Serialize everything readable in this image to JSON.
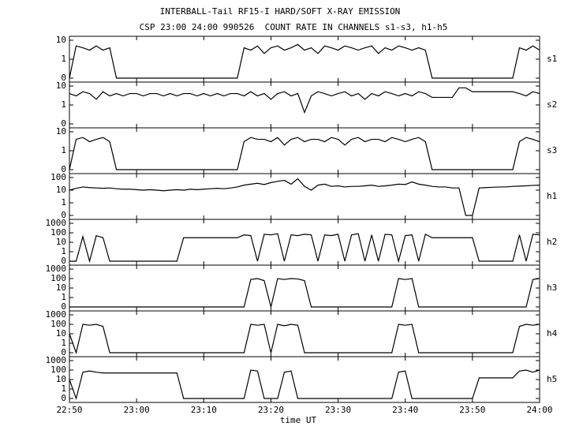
{
  "chart_data": {
    "type": "line",
    "title": "INTERBALL-Tail RF15-I HARD/SOFT X-RAY EMISSION",
    "subtitle": "CSP 23:00 24:00 990526  COUNT RATE IN CHANNELS s1-s3, h1-h5",
    "xlabel": "time UT",
    "log_scale": true,
    "color": "#000000",
    "xlim": [
      1370,
      1440
    ],
    "xticks": [
      {
        "value": 1370,
        "label": "22:50"
      },
      {
        "value": 1380,
        "label": "23:00"
      },
      {
        "value": 1390,
        "label": "23:10"
      },
      {
        "value": 1400,
        "label": "23:20"
      },
      {
        "value": 1410,
        "label": "23:30"
      },
      {
        "value": 1420,
        "label": "23:40"
      },
      {
        "value": 1430,
        "label": "23:50"
      },
      {
        "value": 1440,
        "label": "24:00"
      }
    ],
    "x": [
      1370,
      1371,
      1372,
      1373,
      1374,
      1375,
      1376,
      1377,
      1378,
      1379,
      1380,
      1381,
      1382,
      1383,
      1384,
      1385,
      1386,
      1387,
      1388,
      1389,
      1390,
      1391,
      1392,
      1393,
      1394,
      1395,
      1396,
      1397,
      1398,
      1399,
      1400,
      1401,
      1402,
      1403,
      1404,
      1405,
      1406,
      1407,
      1408,
      1409,
      1410,
      1411,
      1412,
      1413,
      1414,
      1415,
      1416,
      1417,
      1418,
      1419,
      1420,
      1421,
      1422,
      1423,
      1424,
      1425,
      1426,
      1427,
      1428,
      1429,
      1430,
      1431,
      1432,
      1433,
      1434,
      1435,
      1436,
      1437,
      1438,
      1439,
      1440
    ],
    "panels": [
      {
        "name": "s1",
        "ylim": [
          0,
          10
        ],
        "yticks": [
          0,
          1,
          10
        ],
        "values": [
          0,
          5,
          4,
          3,
          5,
          3,
          4,
          0,
          0,
          0,
          0,
          0,
          0,
          0,
          0,
          0,
          0,
          0,
          0,
          0,
          0,
          0,
          0,
          0,
          0,
          0,
          4,
          3,
          5,
          2,
          4,
          5,
          3,
          4,
          6,
          3,
          4,
          2,
          5,
          4,
          3,
          5,
          4,
          3,
          4,
          5,
          2,
          4,
          3,
          5,
          4,
          3,
          4,
          3,
          0,
          0,
          0,
          0,
          0,
          0,
          0,
          0,
          0,
          0,
          0,
          0,
          0,
          4,
          3,
          5,
          3
        ]
      },
      {
        "name": "s2",
        "ylim": [
          0,
          10
        ],
        "yticks": [
          0,
          1,
          10
        ],
        "values": [
          4,
          3,
          5,
          4,
          2,
          5,
          3,
          4,
          3,
          4,
          4,
          3,
          4,
          4,
          3,
          4,
          3,
          4,
          4,
          3,
          4,
          3,
          4,
          3,
          4,
          4,
          3,
          5,
          3,
          4,
          2,
          4,
          5,
          3,
          4,
          0.4,
          3,
          5,
          4,
          3,
          4,
          5,
          3,
          4,
          2,
          4,
          3,
          5,
          4,
          3,
          4,
          3,
          5,
          4,
          2.5,
          2.5,
          2.5,
          2.5,
          8,
          8,
          5,
          5,
          5,
          5,
          5,
          5,
          5,
          4,
          3,
          5,
          4
        ]
      },
      {
        "name": "s3",
        "ylim": [
          0,
          10
        ],
        "yticks": [
          0,
          1,
          10
        ],
        "values": [
          0,
          4,
          5,
          3,
          4,
          5,
          3,
          0,
          0,
          0,
          0,
          0,
          0,
          0,
          0,
          0,
          0,
          0,
          0,
          0,
          0,
          0,
          0,
          0,
          0,
          0,
          3,
          5,
          4,
          4,
          3,
          5,
          2,
          4,
          5,
          3,
          4,
          4,
          3,
          5,
          4,
          2,
          4,
          5,
          3,
          4,
          4,
          3,
          5,
          4,
          3,
          4,
          5,
          3,
          0,
          0,
          0,
          0,
          0,
          0,
          0,
          0,
          0,
          0,
          0,
          0,
          0,
          3,
          5,
          4,
          3
        ]
      },
      {
        "name": "h1",
        "ylim": [
          0,
          100
        ],
        "yticks": [
          0,
          1,
          10,
          100
        ],
        "values": [
          10,
          14,
          18,
          16,
          15,
          14,
          15,
          13,
          12,
          12,
          11,
          10,
          11,
          10,
          9,
          10,
          11,
          10,
          12,
          11,
          12,
          13,
          14,
          13,
          15,
          18,
          25,
          30,
          35,
          28,
          40,
          50,
          60,
          30,
          80,
          20,
          10,
          25,
          30,
          20,
          22,
          18,
          20,
          20,
          22,
          25,
          20,
          22,
          25,
          30,
          28,
          45,
          30,
          25,
          20,
          18,
          18,
          15,
          15,
          0,
          0,
          15,
          16,
          17,
          18,
          18,
          20,
          21,
          22,
          24,
          25
        ]
      },
      {
        "name": "h2",
        "ylim": [
          0,
          1000
        ],
        "yticks": [
          0,
          1,
          10,
          100,
          1000
        ],
        "values": [
          0,
          0,
          40,
          0,
          50,
          30,
          0,
          0,
          0,
          0,
          0,
          0,
          0,
          0,
          0,
          0,
          0,
          30,
          30,
          30,
          30,
          30,
          30,
          30,
          30,
          30,
          60,
          50,
          0,
          70,
          60,
          80,
          0,
          60,
          50,
          70,
          60,
          0,
          60,
          50,
          70,
          0,
          60,
          80,
          0,
          60,
          0,
          70,
          60,
          0,
          50,
          60,
          0,
          70,
          30,
          30,
          30,
          30,
          30,
          30,
          30,
          0,
          0,
          0,
          0,
          0,
          0,
          60,
          0,
          70,
          60
        ]
      },
      {
        "name": "h3",
        "ylim": [
          0,
          1000
        ],
        "yticks": [
          0,
          1,
          10,
          100,
          1000
        ],
        "values": [
          0,
          0,
          0,
          0,
          0,
          0,
          0,
          0,
          0,
          0,
          0,
          0,
          0,
          0,
          0,
          0,
          0,
          0,
          0,
          0,
          0,
          0,
          0,
          0,
          0,
          0,
          0,
          80,
          100,
          60,
          0,
          100,
          80,
          100,
          90,
          60,
          0,
          0,
          0,
          0,
          0,
          0,
          0,
          0,
          0,
          0,
          0,
          0,
          0,
          100,
          80,
          100,
          0,
          0,
          0,
          0,
          0,
          0,
          0,
          0,
          0,
          0,
          0,
          0,
          0,
          0,
          0,
          0,
          0,
          80,
          100
        ]
      },
      {
        "name": "h4",
        "ylim": [
          0,
          1000
        ],
        "yticks": [
          0,
          1,
          10,
          100,
          1000
        ],
        "values": [
          10,
          0,
          100,
          80,
          100,
          60,
          0,
          0,
          0,
          0,
          0,
          0,
          0,
          0,
          0,
          0,
          0,
          0,
          0,
          0,
          0,
          0,
          0,
          0,
          0,
          0,
          0,
          100,
          80,
          100,
          0,
          100,
          70,
          100,
          80,
          0,
          0,
          0,
          0,
          0,
          0,
          0,
          0,
          0,
          0,
          0,
          0,
          0,
          0,
          100,
          80,
          100,
          0,
          0,
          0,
          0,
          0,
          0,
          0,
          0,
          0,
          0,
          0,
          0,
          0,
          0,
          0,
          60,
          100,
          80,
          100
        ]
      },
      {
        "name": "h5",
        "ylim": [
          0,
          1000
        ],
        "yticks": [
          0,
          1,
          10,
          100,
          1000
        ],
        "values": [
          10,
          0,
          60,
          80,
          60,
          50,
          50,
          50,
          50,
          50,
          50,
          50,
          50,
          50,
          50,
          50,
          50,
          0,
          0,
          0,
          0,
          0,
          0,
          0,
          0,
          0,
          0,
          100,
          80,
          0,
          0,
          0,
          60,
          80,
          0,
          0,
          0,
          0,
          0,
          0,
          0,
          0,
          0,
          0,
          0,
          0,
          0,
          0,
          0,
          60,
          80,
          0,
          0,
          0,
          0,
          0,
          0,
          0,
          0,
          0,
          0,
          15,
          15,
          15,
          15,
          15,
          15,
          80,
          100,
          60,
          100
        ]
      }
    ]
  }
}
